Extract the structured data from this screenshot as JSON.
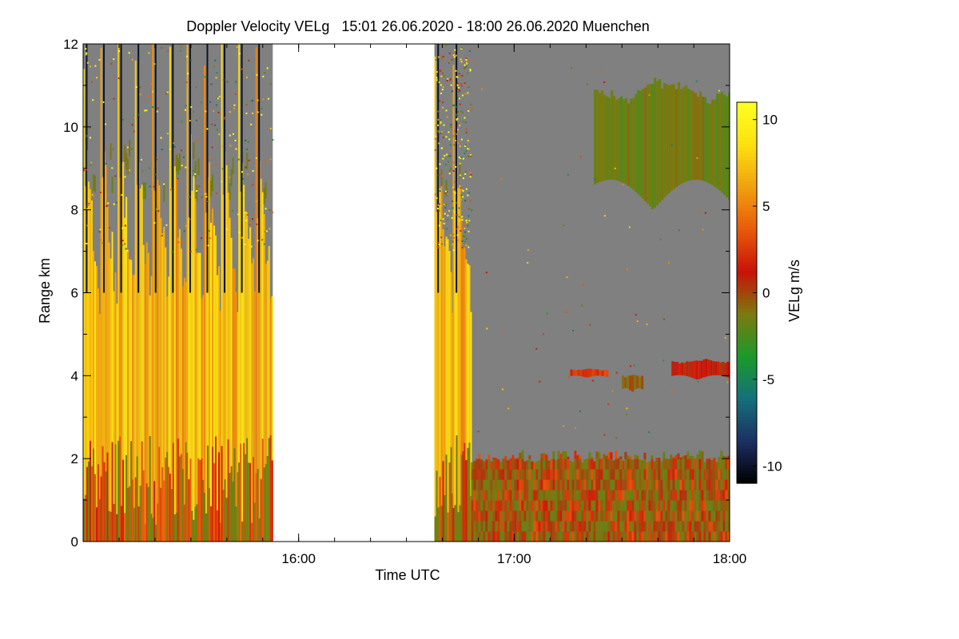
{
  "chart_data": {
    "type": "heatmap",
    "title": "Doppler Velocity VELg   15:01 26.06.2020 - 18:00 26.06.2020 Muenchen",
    "xlabel": "Time UTC",
    "ylabel": "Range km",
    "colorbar_label": "VELg m/s",
    "x_range_hours": [
      15.0,
      18.0
    ],
    "x_ticks": [
      {
        "value": 16.0,
        "label": "16:00"
      },
      {
        "value": 17.0,
        "label": "17:00"
      },
      {
        "value": 18.0,
        "label": "18:00"
      }
    ],
    "x_minor_step_hours": 0.1667,
    "y_range_km": [
      0,
      12
    ],
    "y_ticks": [
      0,
      2,
      4,
      6,
      8,
      10,
      12
    ],
    "color_range": [
      -11,
      11
    ],
    "colorbar_ticks": [
      -10,
      -5,
      0,
      5,
      10
    ],
    "colormap": [
      "#000000",
      "#1c2f64",
      "#14707a",
      "#1a9a2a",
      "#7c7a0e",
      "#c81208",
      "#e85a0a",
      "#f0a010",
      "#fce010",
      "#ffff20"
    ],
    "no_signal_color": "#808080",
    "data_gaps_hours": [
      [
        15.88,
        16.63
      ]
    ],
    "segments": [
      {
        "name": "vertical scanning pattern",
        "start": 15.0,
        "end": 15.88,
        "top_km": 12,
        "pattern": "stripes",
        "cycles": 11
      },
      {
        "name": "short scan block",
        "start": 16.63,
        "end": 16.8,
        "top_km": 12,
        "pattern": "stripes",
        "cycles": 2
      },
      {
        "name": "boundary layer",
        "start": 16.8,
        "end": 18.0,
        "bottom_km": 0,
        "top_km": 2.2,
        "mean_velocity_ms": 0
      }
    ],
    "features": [
      {
        "name": "upper cloud",
        "start": 17.37,
        "end": 18.0,
        "bottom_km": 8.0,
        "top_km": 10.9,
        "mean_velocity_ms": -1.5
      },
      {
        "name": "mid-level layer",
        "start": 17.73,
        "end": 18.0,
        "bottom_km": 3.9,
        "top_km": 4.35,
        "mean_velocity_ms": 1
      },
      {
        "name": "small echo",
        "start": 17.26,
        "end": 17.43,
        "bottom_km": 3.95,
        "top_km": 4.15,
        "mean_velocity_ms": 2.5
      },
      {
        "name": "small echo",
        "start": 17.5,
        "end": 17.6,
        "bottom_km": 3.6,
        "top_km": 4.0,
        "mean_velocity_ms": -0.5
      }
    ]
  }
}
